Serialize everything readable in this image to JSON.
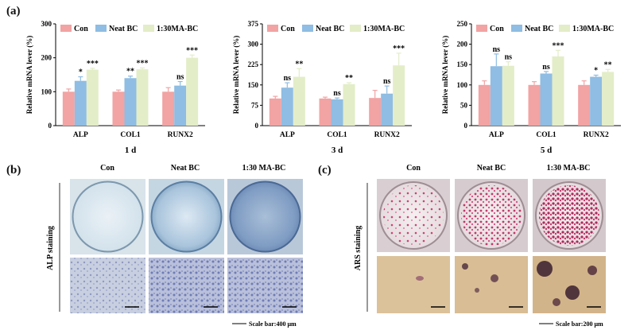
{
  "labels": {
    "a": "(a)",
    "b": "(b)",
    "c": "(c)"
  },
  "chart_data": [
    {
      "type": "bar",
      "categories": [
        "ALP",
        "COL1",
        "RUNX2"
      ],
      "xlabel": "1 d",
      "ylabel": "Relative mRNA lever (%)",
      "ylim": [
        0,
        300
      ],
      "yticks": [
        0,
        100,
        200,
        300
      ],
      "legend": "top",
      "series": [
        {
          "name": "Con",
          "color": "#f2a3a3",
          "values": [
            100,
            100,
            100
          ],
          "errors": [
            8,
            5,
            12
          ]
        },
        {
          "name": "Neat BC",
          "color": "#8fbde3",
          "values": [
            132,
            140,
            118
          ],
          "errors": [
            12,
            6,
            12
          ]
        },
        {
          "name": "1:30MA-BC",
          "color": "#e3edc8",
          "values": [
            165,
            166,
            200
          ],
          "errors": [
            4,
            4,
            8
          ]
        }
      ],
      "annotations": [
        {
          "category": 0,
          "series": 1,
          "text": "*"
        },
        {
          "category": 0,
          "series": 2,
          "text": "***"
        },
        {
          "category": 1,
          "series": 1,
          "text": "**"
        },
        {
          "category": 1,
          "series": 2,
          "text": "***"
        },
        {
          "category": 2,
          "series": 1,
          "text": "ns"
        },
        {
          "category": 2,
          "series": 2,
          "text": "***"
        }
      ]
    },
    {
      "type": "bar",
      "categories": [
        "ALP",
        "COL1",
        "RUNX2"
      ],
      "xlabel": "3 d",
      "ylabel": "Relative mRNA lever (%)",
      "ylim": [
        0,
        375
      ],
      "yticks": [
        0,
        75,
        150,
        225,
        300,
        375
      ],
      "legend": "top",
      "series": [
        {
          "name": "Con",
          "color": "#f2a3a3",
          "values": [
            100,
            100,
            102
          ],
          "errors": [
            8,
            5,
            28
          ]
        },
        {
          "name": "Neat BC",
          "color": "#8fbde3",
          "values": [
            140,
            97,
            118
          ],
          "errors": [
            18,
            5,
            28
          ]
        },
        {
          "name": "1:30MA-BC",
          "color": "#e3edc8",
          "values": [
            180,
            153,
            222
          ],
          "errors": [
            30,
            5,
            45
          ]
        }
      ],
      "annotations": [
        {
          "category": 0,
          "series": 1,
          "text": "ns"
        },
        {
          "category": 0,
          "series": 2,
          "text": "**"
        },
        {
          "category": 1,
          "series": 1,
          "text": "ns"
        },
        {
          "category": 1,
          "series": 2,
          "text": "**"
        },
        {
          "category": 2,
          "series": 1,
          "text": "ns"
        },
        {
          "category": 2,
          "series": 2,
          "text": "***"
        }
      ]
    },
    {
      "type": "bar",
      "categories": [
        "ALP",
        "COL1",
        "RUNX2"
      ],
      "xlabel": "5 d",
      "ylabel": "Relative mRNA lever (%)",
      "ylim": [
        0,
        250
      ],
      "yticks": [
        0,
        50,
        100,
        150,
        200,
        250
      ],
      "legend": "top",
      "series": [
        {
          "name": "Con",
          "color": "#f2a3a3",
          "values": [
            100,
            100,
            100
          ],
          "errors": [
            10,
            8,
            10
          ]
        },
        {
          "name": "Neat BC",
          "color": "#8fbde3",
          "values": [
            146,
            128,
            120
          ],
          "errors": [
            30,
            5,
            4
          ]
        },
        {
          "name": "1:30MA-BC",
          "color": "#e3edc8",
          "values": [
            147,
            170,
            132
          ],
          "errors": [
            10,
            15,
            6
          ]
        }
      ],
      "annotations": [
        {
          "category": 0,
          "series": 1,
          "text": "ns"
        },
        {
          "category": 0,
          "series": 2,
          "text": "ns"
        },
        {
          "category": 1,
          "series": 1,
          "text": "ns"
        },
        {
          "category": 1,
          "series": 2,
          "text": "***"
        },
        {
          "category": 2,
          "series": 1,
          "text": "*"
        },
        {
          "category": 2,
          "series": 2,
          "text": "**"
        }
      ]
    }
  ],
  "panel_b": {
    "headers": [
      "Con",
      "Neat BC",
      "1:30 MA-BC"
    ],
    "side_label": "ALP staining",
    "scale_bar": "Scale bar:400 μm"
  },
  "panel_c": {
    "headers": [
      "Con",
      "Neat BC",
      "1:30 MA-BC"
    ],
    "side_label": "ARS staining",
    "scale_bar": "Scale bar:200 μm"
  }
}
